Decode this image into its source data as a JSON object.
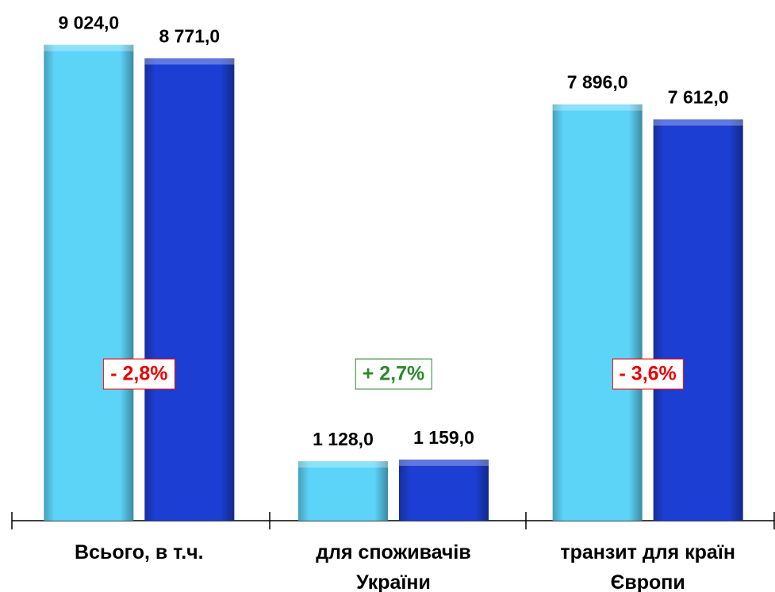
{
  "chart_data": {
    "type": "bar",
    "categories": [
      "Всього, в т.ч.",
      "для споживачів\nУкраїни",
      "транзит для країн\nЄвропи"
    ],
    "series": [
      {
        "color": "#5cd4f8",
        "values": [
          9024,
          1128,
          7896
        ],
        "value_labels": [
          "9 024,0",
          "1 128,0",
          "7 896,0"
        ]
      },
      {
        "color": "#1c3ed2",
        "values": [
          8771,
          1159,
          7612
        ],
        "value_labels": [
          "8 771,0",
          "1 159,0",
          "7 612,0"
        ]
      }
    ],
    "annotations": [
      {
        "text": "- 2,8%",
        "color": "#ee0000"
      },
      {
        "text": "+ 2,7%",
        "color": "#2a8a2a"
      },
      {
        "text": "- 3,6%",
        "color": "#ee0000"
      }
    ],
    "ylim": [
      0,
      9800
    ]
  }
}
